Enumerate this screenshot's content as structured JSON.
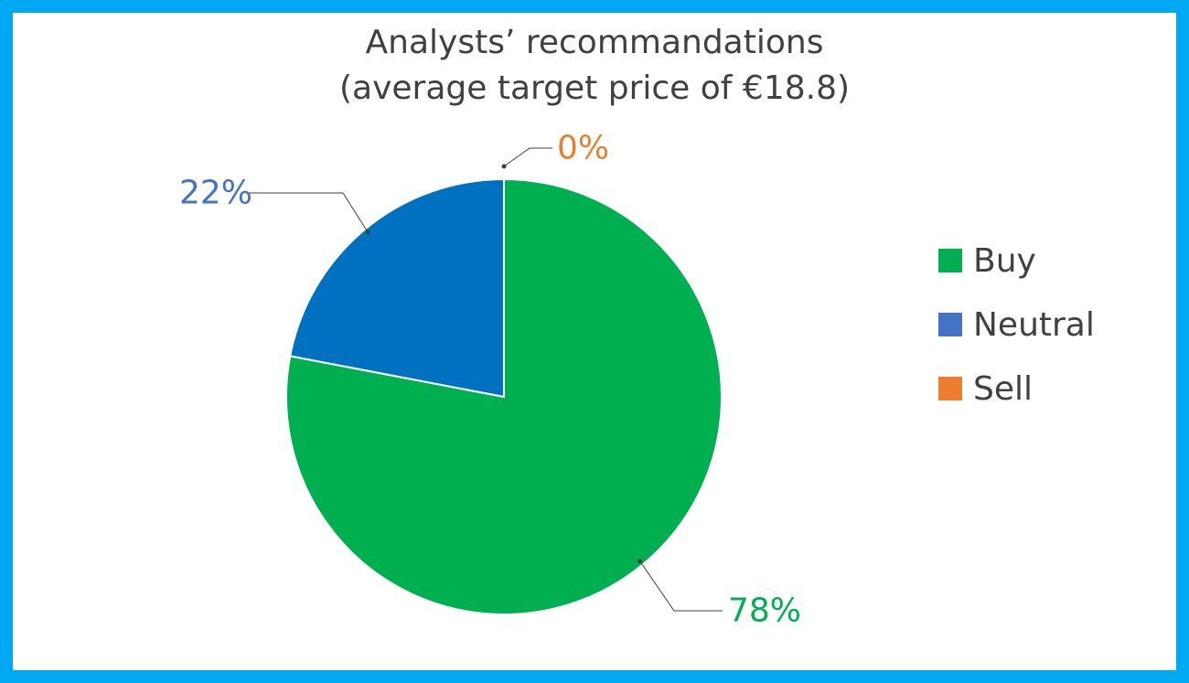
{
  "chart_data": {
    "type": "pie",
    "title": "Analysts’ recommandations",
    "subtitle": "(average target price of €18.8)",
    "categories": [
      "Buy",
      "Neutral",
      "Sell"
    ],
    "values": [
      78,
      22,
      0
    ],
    "data_labels": [
      "78%",
      "22%",
      "0%"
    ],
    "colors": [
      "#00B050",
      "#0070C0",
      "#ED7D31"
    ],
    "legend_colors": [
      "#00B050",
      "#4472C4",
      "#ED7D31"
    ],
    "label_colors": [
      "#00B050",
      "#4472C4",
      "#ED7D31"
    ],
    "legend_position": "right"
  },
  "frame_color": "#00A9F2"
}
